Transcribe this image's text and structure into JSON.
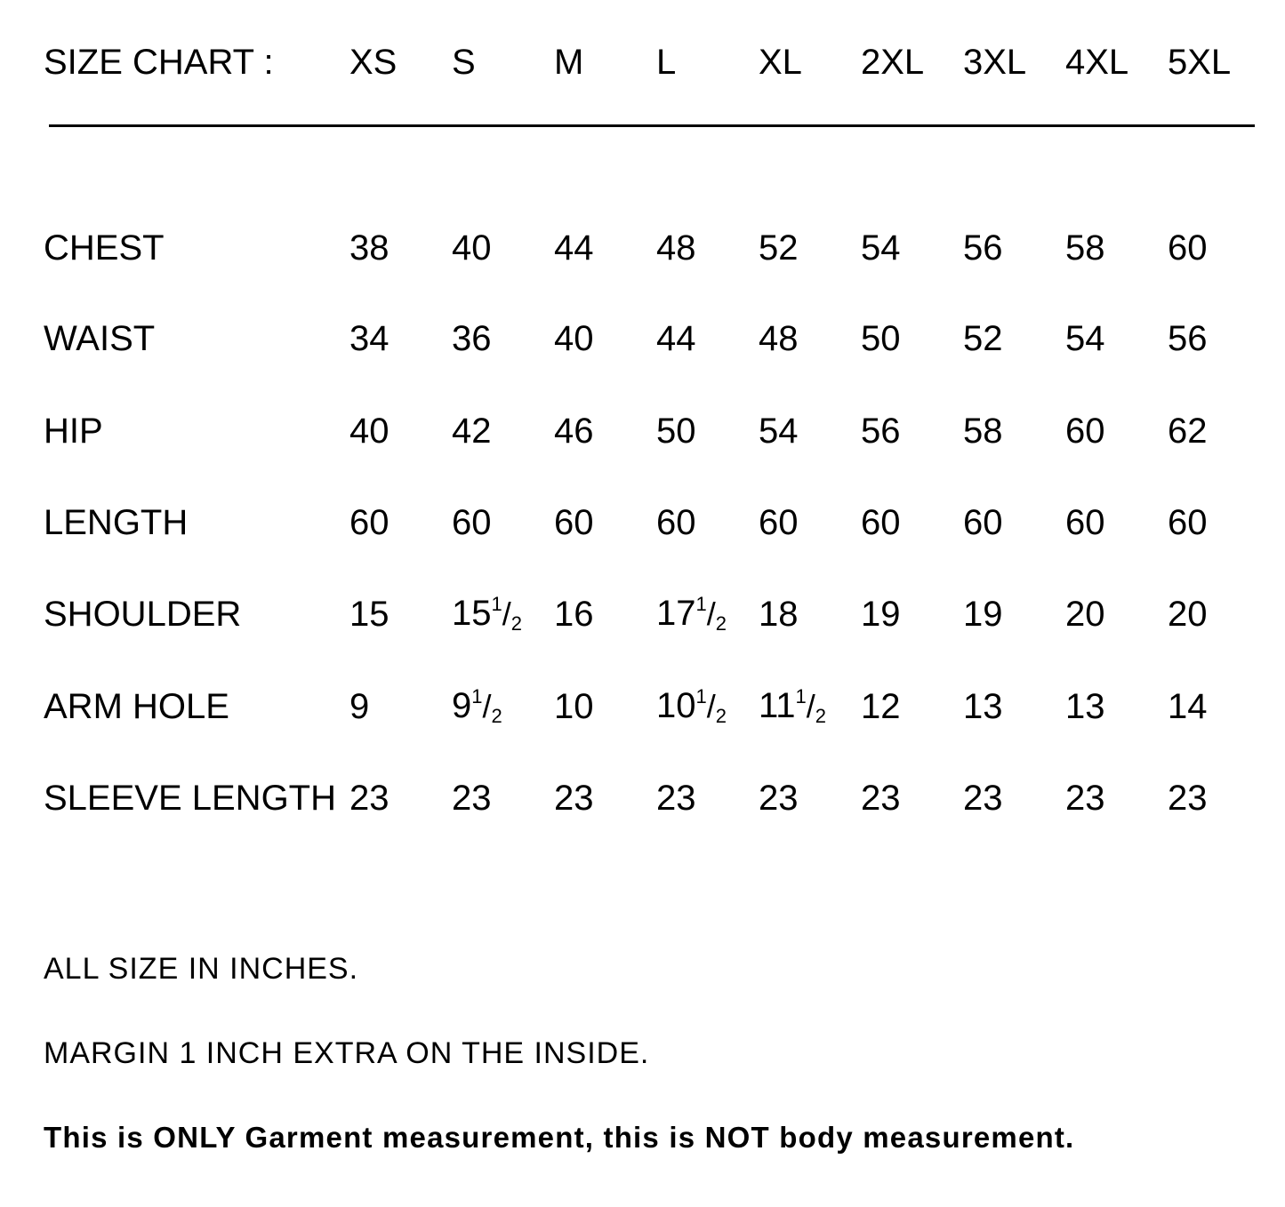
{
  "header": {
    "title": "SIZE CHART :",
    "sizes": [
      "XS",
      "S",
      "M",
      "L",
      "XL",
      "2XL",
      "3XL",
      "4XL",
      "5XL"
    ]
  },
  "rows": [
    {
      "label": "CHEST",
      "values": [
        {
          "w": "38"
        },
        {
          "w": "40"
        },
        {
          "w": "44"
        },
        {
          "w": "48"
        },
        {
          "w": "52"
        },
        {
          "w": "54"
        },
        {
          "w": "56"
        },
        {
          "w": "58"
        },
        {
          "w": "60"
        }
      ]
    },
    {
      "label": "WAIST",
      "values": [
        {
          "w": "34"
        },
        {
          "w": "36"
        },
        {
          "w": "40"
        },
        {
          "w": "44"
        },
        {
          "w": "48"
        },
        {
          "w": "50"
        },
        {
          "w": "52"
        },
        {
          "w": "54"
        },
        {
          "w": "56"
        }
      ]
    },
    {
      "label": "HIP",
      "values": [
        {
          "w": "40"
        },
        {
          "w": "42"
        },
        {
          "w": "46"
        },
        {
          "w": "50"
        },
        {
          "w": "54"
        },
        {
          "w": "56"
        },
        {
          "w": "58"
        },
        {
          "w": "60"
        },
        {
          "w": "62"
        }
      ]
    },
    {
      "label": "LENGTH",
      "values": [
        {
          "w": "60"
        },
        {
          "w": "60"
        },
        {
          "w": "60"
        },
        {
          "w": "60"
        },
        {
          "w": "60"
        },
        {
          "w": "60"
        },
        {
          "w": "60"
        },
        {
          "w": "60"
        },
        {
          "w": "60"
        }
      ]
    },
    {
      "label": "SHOULDER",
      "values": [
        {
          "w": "15"
        },
        {
          "w": "15",
          "n": "1",
          "d": "2"
        },
        {
          "w": "16"
        },
        {
          "w": "17",
          "n": "1",
          "d": "2"
        },
        {
          "w": "18"
        },
        {
          "w": "19"
        },
        {
          "w": "19"
        },
        {
          "w": "20"
        },
        {
          "w": "20"
        }
      ]
    },
    {
      "label": "ARM HOLE",
      "values": [
        {
          "w": "9"
        },
        {
          "w": "9",
          "n": "1",
          "d": "2"
        },
        {
          "w": "10"
        },
        {
          "w": "10",
          "n": "1",
          "d": "2"
        },
        {
          "w": "11",
          "n": "1",
          "d": "2"
        },
        {
          "w": "12"
        },
        {
          "w": "13"
        },
        {
          "w": "13"
        },
        {
          "w": "14"
        }
      ]
    },
    {
      "label": "SLEEVE LENGTH",
      "values": [
        {
          "w": "23"
        },
        {
          "w": "23"
        },
        {
          "w": "23"
        },
        {
          "w": "23"
        },
        {
          "w": "23"
        },
        {
          "w": "23"
        },
        {
          "w": "23"
        },
        {
          "w": "23"
        },
        {
          "w": "23"
        }
      ]
    }
  ],
  "notes": {
    "units": "ALL SIZE IN INCHES.",
    "margin": "MARGIN 1 INCH EXTRA ON THE INSIDE.",
    "disclaimer": "This is ONLY Garment measurement, this is NOT body measurement."
  }
}
